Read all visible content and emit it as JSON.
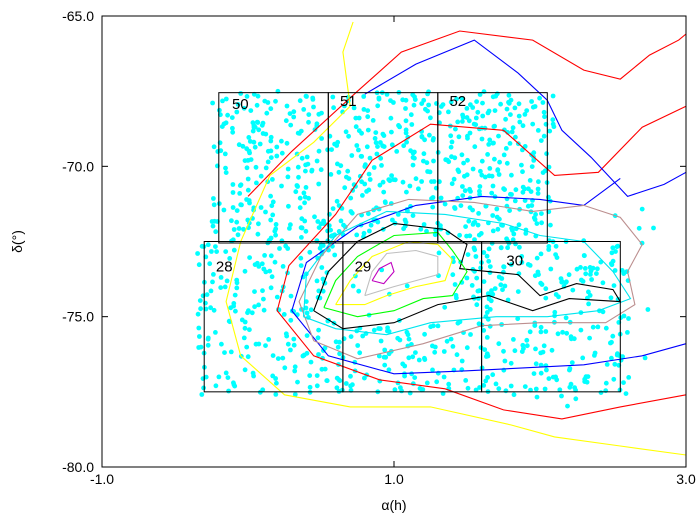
{
  "chart_data": {
    "type": "scatter",
    "title": "",
    "xlabel": "α(h)",
    "ylabel": "δ(°)",
    "xlim": [
      -1.0,
      3.0
    ],
    "ylim": [
      -80.0,
      -65.0
    ],
    "x_ticks": [
      {
        "value": -1.0,
        "label": "-1.0"
      },
      {
        "value": 1.0,
        "label": "1.0"
      },
      {
        "value": 3.0,
        "label": "3.0"
      }
    ],
    "y_ticks": [
      {
        "value": -65.0,
        "label": "-65.0"
      },
      {
        "value": -70.0,
        "label": "-70.0"
      },
      {
        "value": -75.0,
        "label": "-75.0"
      },
      {
        "value": -80.0,
        "label": "-80.0"
      }
    ],
    "grid": false,
    "legend": "none",
    "fields": [
      {
        "label": "50",
        "x0": -0.2,
        "x1": 0.55,
        "y0": -72.55,
        "y1": -67.55,
        "lx": -0.11,
        "ly": -68.1
      },
      {
        "label": "51",
        "x0": 0.55,
        "x1": 1.3,
        "y0": -72.55,
        "y1": -67.55,
        "lx": 0.63,
        "ly": -68.0
      },
      {
        "label": "52",
        "x0": 1.3,
        "x1": 2.05,
        "y0": -72.55,
        "y1": -67.55,
        "lx": 1.38,
        "ly": -68.0
      },
      {
        "label": "28",
        "x0": -0.3,
        "x1": 0.65,
        "y0": -77.5,
        "y1": -72.5,
        "lx": -0.22,
        "ly": -73.5
      },
      {
        "label": "29",
        "x0": 0.65,
        "x1": 1.6,
        "y0": -77.5,
        "y1": -72.5,
        "lx": 0.73,
        "ly": -73.5
      },
      {
        "label": "30",
        "x0": 1.6,
        "x1": 2.55,
        "y0": -77.5,
        "y1": -72.5,
        "lx": 1.77,
        "ly": -73.3
      }
    ],
    "contours": [
      {
        "color": "#ff0000",
        "points": [
          [
            0.0,
            -71.0
          ],
          [
            0.3,
            -69.5
          ],
          [
            0.75,
            -67.5
          ],
          [
            1.05,
            -66.2
          ],
          [
            1.45,
            -65.5
          ],
          [
            1.95,
            -65.8
          ],
          [
            2.3,
            -66.8
          ],
          [
            2.55,
            -67.1
          ],
          [
            2.75,
            -66.3
          ],
          [
            2.95,
            -65.8
          ],
          [
            3.0,
            -65.6
          ]
        ]
      },
      {
        "color": "#ff0000",
        "points": [
          [
            3.0,
            -77.6
          ],
          [
            2.55,
            -78.0
          ],
          [
            2.15,
            -78.4
          ],
          [
            1.75,
            -78.1
          ],
          [
            1.35,
            -77.4
          ],
          [
            0.9,
            -77.1
          ],
          [
            0.45,
            -76.3
          ],
          [
            0.2,
            -74.8
          ],
          [
            0.28,
            -73.3
          ],
          [
            0.6,
            -71.6
          ],
          [
            0.85,
            -69.8
          ],
          [
            1.25,
            -68.6
          ],
          [
            1.75,
            -68.8
          ],
          [
            2.1,
            -70.3
          ],
          [
            2.4,
            -70.2
          ],
          [
            2.7,
            -68.7
          ],
          [
            3.0,
            -68.0
          ]
        ]
      },
      {
        "color": "#0000ff",
        "points": [
          [
            0.8,
            -67.6
          ],
          [
            1.15,
            -66.6
          ],
          [
            1.55,
            -65.8
          ],
          [
            1.85,
            -66.9
          ],
          [
            2.05,
            -67.8
          ],
          [
            2.15,
            -68.8
          ],
          [
            2.35,
            -69.7
          ],
          [
            2.6,
            -71.0
          ],
          [
            2.85,
            -70.6
          ],
          [
            3.0,
            -70.2
          ]
        ]
      },
      {
        "color": "#0000ff",
        "points": [
          [
            3.0,
            -75.9
          ],
          [
            2.7,
            -76.3
          ],
          [
            2.3,
            -76.6
          ],
          [
            1.9,
            -76.7
          ],
          [
            1.5,
            -76.8
          ],
          [
            1.0,
            -76.9
          ],
          [
            0.55,
            -76.3
          ],
          [
            0.3,
            -74.8
          ],
          [
            0.4,
            -73.2
          ],
          [
            0.75,
            -72.0
          ],
          [
            1.15,
            -71.3
          ],
          [
            1.6,
            -71.0
          ],
          [
            2.0,
            -71.1
          ],
          [
            2.3,
            -71.3
          ],
          [
            2.55,
            -70.4
          ]
        ]
      },
      {
        "color": "#ffff00",
        "points": [
          [
            3.0,
            -79.6
          ],
          [
            2.55,
            -79.3
          ],
          [
            2.1,
            -79.0
          ],
          [
            1.8,
            -78.6
          ],
          [
            1.25,
            -78.0
          ],
          [
            0.7,
            -78.0
          ],
          [
            0.25,
            -77.6
          ],
          [
            -0.05,
            -76.3
          ],
          [
            -0.15,
            -74.5
          ],
          [
            -0.05,
            -72.5
          ],
          [
            0.15,
            -70.3
          ],
          [
            0.45,
            -69.2
          ],
          [
            0.7,
            -68.0
          ],
          [
            0.65,
            -66.2
          ],
          [
            0.72,
            -65.2
          ]
        ]
      },
      {
        "color": "#bc8f8f",
        "points": [
          [
            0.45,
            -75.8
          ],
          [
            0.35,
            -74.5
          ],
          [
            0.5,
            -73.0
          ],
          [
            0.75,
            -71.6
          ],
          [
            1.1,
            -71.1
          ],
          [
            1.55,
            -71.2
          ],
          [
            1.95,
            -71.5
          ],
          [
            2.3,
            -71.3
          ],
          [
            2.55,
            -71.7
          ],
          [
            2.7,
            -72.6
          ],
          [
            2.6,
            -73.5
          ],
          [
            2.65,
            -74.6
          ],
          [
            2.45,
            -75.2
          ],
          [
            2.0,
            -75.2
          ],
          [
            1.6,
            -75.3
          ],
          [
            1.2,
            -75.9
          ],
          [
            0.75,
            -76.4
          ],
          [
            0.45,
            -75.8
          ]
        ]
      },
      {
        "color": "#00e5ee",
        "points": [
          [
            0.38,
            -75.0
          ],
          [
            0.4,
            -73.6
          ],
          [
            0.6,
            -72.3
          ],
          [
            0.95,
            -71.5
          ],
          [
            1.35,
            -71.6
          ],
          [
            1.75,
            -71.9
          ],
          [
            2.0,
            -72.3
          ],
          [
            2.3,
            -72.5
          ],
          [
            2.5,
            -73.5
          ],
          [
            2.62,
            -74.4
          ],
          [
            2.4,
            -74.8
          ],
          [
            2.05,
            -75.0
          ],
          [
            1.7,
            -75.0
          ],
          [
            1.25,
            -75.2
          ],
          [
            0.95,
            -75.6
          ],
          [
            0.6,
            -75.4
          ],
          [
            0.38,
            -75.0
          ]
        ]
      },
      {
        "color": "#000000",
        "points": [
          [
            0.45,
            -74.8
          ],
          [
            0.55,
            -73.5
          ],
          [
            0.75,
            -72.5
          ],
          [
            1.0,
            -71.9
          ],
          [
            1.35,
            -72.1
          ],
          [
            1.5,
            -72.6
          ],
          [
            1.45,
            -73.4
          ],
          [
            1.85,
            -73.6
          ],
          [
            2.0,
            -74.3
          ],
          [
            2.25,
            -73.9
          ],
          [
            2.5,
            -74.1
          ],
          [
            2.55,
            -74.5
          ],
          [
            2.2,
            -74.4
          ],
          [
            1.95,
            -74.8
          ],
          [
            1.65,
            -74.3
          ],
          [
            1.3,
            -74.6
          ],
          [
            1.0,
            -75.2
          ],
          [
            0.65,
            -75.4
          ],
          [
            0.45,
            -74.8
          ]
        ]
      },
      {
        "color": "#00ff00",
        "points": [
          [
            0.52,
            -74.7
          ],
          [
            0.6,
            -73.8
          ],
          [
            0.75,
            -73.0
          ],
          [
            1.0,
            -72.3
          ],
          [
            1.3,
            -72.2
          ],
          [
            1.4,
            -72.8
          ],
          [
            1.5,
            -73.5
          ],
          [
            1.4,
            -74.3
          ],
          [
            1.2,
            -74.4
          ],
          [
            1.0,
            -74.8
          ],
          [
            0.75,
            -75.0
          ],
          [
            0.52,
            -74.7
          ]
        ]
      },
      {
        "color": "#ffff00",
        "points": [
          [
            0.6,
            -74.6
          ],
          [
            0.7,
            -73.8
          ],
          [
            0.85,
            -73.0
          ],
          [
            1.1,
            -72.5
          ],
          [
            1.3,
            -72.6
          ],
          [
            1.4,
            -73.1
          ],
          [
            1.35,
            -73.8
          ],
          [
            1.15,
            -74.0
          ],
          [
            0.95,
            -74.3
          ],
          [
            0.8,
            -74.6
          ],
          [
            0.6,
            -74.6
          ]
        ]
      },
      {
        "color": "#bfbfbf",
        "points": [
          [
            0.8,
            -74.3
          ],
          [
            0.85,
            -73.5
          ],
          [
            0.95,
            -72.9
          ],
          [
            1.15,
            -72.8
          ],
          [
            1.3,
            -73.0
          ],
          [
            1.3,
            -73.6
          ],
          [
            1.15,
            -73.8
          ],
          [
            1.0,
            -74.0
          ],
          [
            0.8,
            -74.3
          ]
        ]
      },
      {
        "color": "#bf00bf",
        "points": [
          [
            0.85,
            -73.8
          ],
          [
            0.9,
            -73.4
          ],
          [
            0.98,
            -73.2
          ],
          [
            1.0,
            -73.5
          ],
          [
            0.93,
            -73.9
          ],
          [
            0.85,
            -73.8
          ]
        ]
      }
    ],
    "scatter": {
      "color": "#00ffff",
      "point_count": 1400,
      "region_dense": [
        [
          -0.35,
          -77.6,
          2.62,
          -72.45
        ],
        [
          -0.25,
          -72.5,
          2.1,
          -67.5
        ]
      ],
      "region_sparse": [
        [
          0.5,
          -78.0,
          2.8,
          -71.0
        ]
      ]
    }
  }
}
